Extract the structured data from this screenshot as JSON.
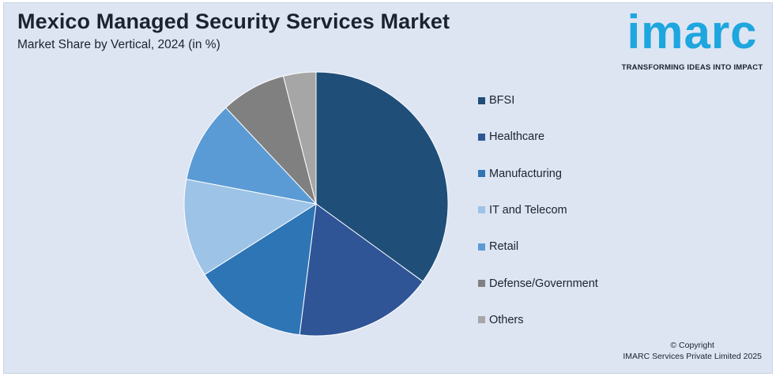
{
  "header": {
    "title": "Mexico Managed Security Services Market",
    "subtitle": "Market Share by Vertical, 2024 (in %)"
  },
  "logo": {
    "word": "imarc",
    "tagline": "TRANSFORMING IDEAS INTO IMPACT",
    "color": "#1ea6de"
  },
  "footer": {
    "line1": "© Copyright",
    "line2": "IMARC Services Private Limited 2025"
  },
  "chart_data": {
    "type": "pie",
    "title": "Mexico Managed Security Services Market",
    "subtitle": "Market Share by Vertical, 2024 (in %)",
    "categories": [
      "BFSI",
      "Healthcare",
      "Manufacturing",
      "IT and Telecom",
      "Retail",
      "Defense/Government",
      "Others"
    ],
    "values": [
      35,
      17,
      14,
      12,
      10,
      8,
      4
    ],
    "colors": [
      "#1f4e79",
      "#2f5597",
      "#2e75b6",
      "#9dc3e6",
      "#5b9bd5",
      "#808080",
      "#a6a6a6"
    ],
    "start_angle_deg": 0,
    "direction": "clockwise",
    "legend_position": "right"
  }
}
